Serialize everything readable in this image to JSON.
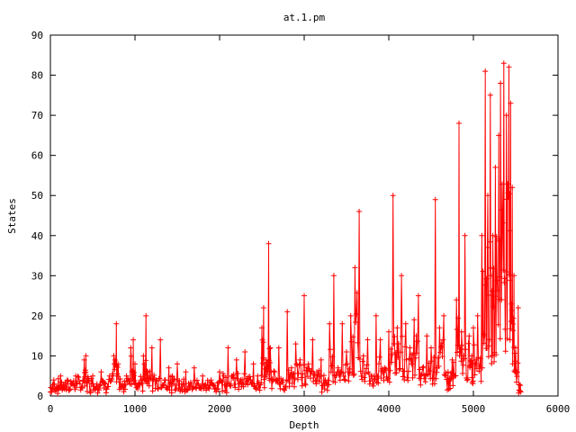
{
  "colors": {
    "series": "#ff0000",
    "axis": "#000000",
    "background": "#ffffff"
  },
  "chart_data": {
    "type": "line",
    "title": "at.1.pm",
    "xlabel": "Depth",
    "ylabel": "States",
    "xlim": [
      0,
      6000
    ],
    "ylim": [
      0,
      90
    ],
    "xticks": [
      0,
      1000,
      2000,
      3000,
      4000,
      5000,
      6000
    ],
    "yticks": [
      0,
      10,
      20,
      30,
      40,
      50,
      60,
      70,
      80,
      90
    ],
    "grid": false,
    "legend": "none",
    "marker": "plus",
    "series": [
      {
        "peaks": [
          [
            0,
            1
          ],
          [
            40,
            4
          ],
          [
            80,
            2
          ],
          [
            120,
            5
          ],
          [
            160,
            2
          ],
          [
            200,
            4
          ],
          [
            250,
            3
          ],
          [
            300,
            5
          ],
          [
            350,
            3
          ],
          [
            400,
            9
          ],
          [
            420,
            10
          ],
          [
            450,
            4
          ],
          [
            500,
            5
          ],
          [
            550,
            3
          ],
          [
            600,
            6
          ],
          [
            650,
            3
          ],
          [
            700,
            5
          ],
          [
            750,
            10
          ],
          [
            780,
            18
          ],
          [
            800,
            8
          ],
          [
            850,
            3
          ],
          [
            900,
            5
          ],
          [
            950,
            12
          ],
          [
            980,
            14
          ],
          [
            1000,
            8
          ],
          [
            1050,
            3
          ],
          [
            1100,
            10
          ],
          [
            1130,
            20
          ],
          [
            1150,
            6
          ],
          [
            1200,
            12
          ],
          [
            1250,
            4
          ],
          [
            1300,
            14
          ],
          [
            1350,
            4
          ],
          [
            1400,
            7
          ],
          [
            1450,
            3
          ],
          [
            1500,
            8
          ],
          [
            1550,
            3
          ],
          [
            1600,
            6
          ],
          [
            1650,
            2
          ],
          [
            1700,
            7
          ],
          [
            1750,
            3
          ],
          [
            1800,
            5
          ],
          [
            1850,
            2
          ],
          [
            1900,
            4
          ],
          [
            1950,
            2
          ],
          [
            2000,
            6
          ],
          [
            2050,
            5
          ],
          [
            2100,
            12
          ],
          [
            2150,
            5
          ],
          [
            2200,
            9
          ],
          [
            2250,
            4
          ],
          [
            2300,
            11
          ],
          [
            2350,
            4
          ],
          [
            2400,
            8
          ],
          [
            2450,
            5
          ],
          [
            2500,
            17
          ],
          [
            2520,
            22
          ],
          [
            2550,
            9
          ],
          [
            2580,
            38
          ],
          [
            2600,
            12
          ],
          [
            2650,
            6
          ],
          [
            2700,
            12
          ],
          [
            2750,
            4
          ],
          [
            2800,
            21
          ],
          [
            2850,
            7
          ],
          [
            2900,
            13
          ],
          [
            2950,
            9
          ],
          [
            3000,
            25
          ],
          [
            3050,
            8
          ],
          [
            3100,
            14
          ],
          [
            3150,
            6
          ],
          [
            3200,
            9
          ],
          [
            3250,
            4
          ],
          [
            3300,
            18
          ],
          [
            3350,
            30
          ],
          [
            3400,
            7
          ],
          [
            3450,
            18
          ],
          [
            3500,
            11
          ],
          [
            3550,
            20
          ],
          [
            3600,
            32
          ],
          [
            3650,
            46
          ],
          [
            3700,
            10
          ],
          [
            3750,
            14
          ],
          [
            3800,
            5
          ],
          [
            3850,
            20
          ],
          [
            3900,
            14
          ],
          [
            3950,
            7
          ],
          [
            4000,
            16
          ],
          [
            4050,
            50
          ],
          [
            4100,
            17
          ],
          [
            4150,
            30
          ],
          [
            4200,
            18
          ],
          [
            4250,
            12
          ],
          [
            4300,
            19
          ],
          [
            4350,
            25
          ],
          [
            4400,
            7
          ],
          [
            4450,
            15
          ],
          [
            4500,
            12
          ],
          [
            4550,
            49
          ],
          [
            4600,
            17
          ],
          [
            4650,
            20
          ],
          [
            4700,
            6
          ],
          [
            4750,
            9
          ],
          [
            4800,
            24
          ],
          [
            4830,
            68
          ],
          [
            4860,
            16
          ],
          [
            4900,
            40
          ],
          [
            4950,
            15
          ],
          [
            4980,
            10
          ],
          [
            5000,
            17
          ],
          [
            5050,
            20
          ],
          [
            5100,
            40
          ],
          [
            5140,
            81
          ],
          [
            5170,
            50
          ],
          [
            5200,
            75
          ],
          [
            5230,
            40
          ],
          [
            5260,
            57
          ],
          [
            5300,
            65
          ],
          [
            5320,
            78
          ],
          [
            5360,
            83
          ],
          [
            5390,
            70
          ],
          [
            5420,
            82
          ],
          [
            5440,
            73
          ],
          [
            5460,
            52
          ],
          [
            5480,
            30
          ],
          [
            5500,
            12
          ],
          [
            5530,
            22
          ],
          [
            5560,
            1
          ]
        ]
      }
    ]
  }
}
